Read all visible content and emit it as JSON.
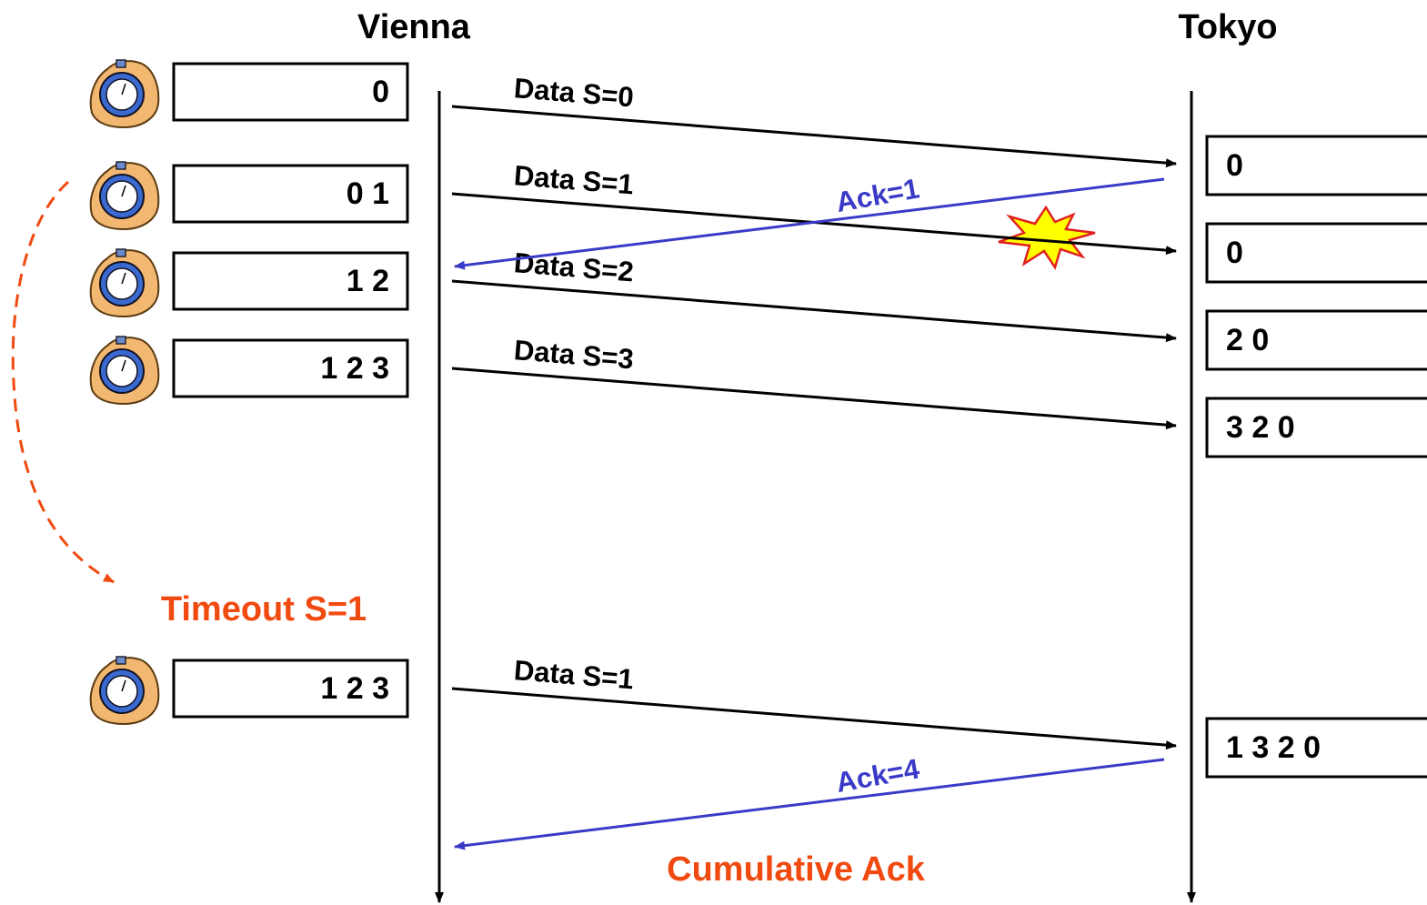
{
  "hosts": {
    "sender": "Vienna",
    "receiver": "Tokyo"
  },
  "sender_buffers": [
    "0",
    "0 1",
    "1 2",
    "1 2 3",
    "1 2 3"
  ],
  "receiver_buffers": [
    "0",
    "0",
    "2 0",
    "3 2 0",
    "1 3 2 0"
  ],
  "data_messages": [
    "Data S=0",
    "Data S=1",
    "Data S=2",
    "Data S=3",
    "Data S=1"
  ],
  "acks": [
    "Ack=1",
    "Ack=4"
  ],
  "annotations": {
    "timeout": "Timeout S=1",
    "cumulative": "Cumulative Ack"
  }
}
